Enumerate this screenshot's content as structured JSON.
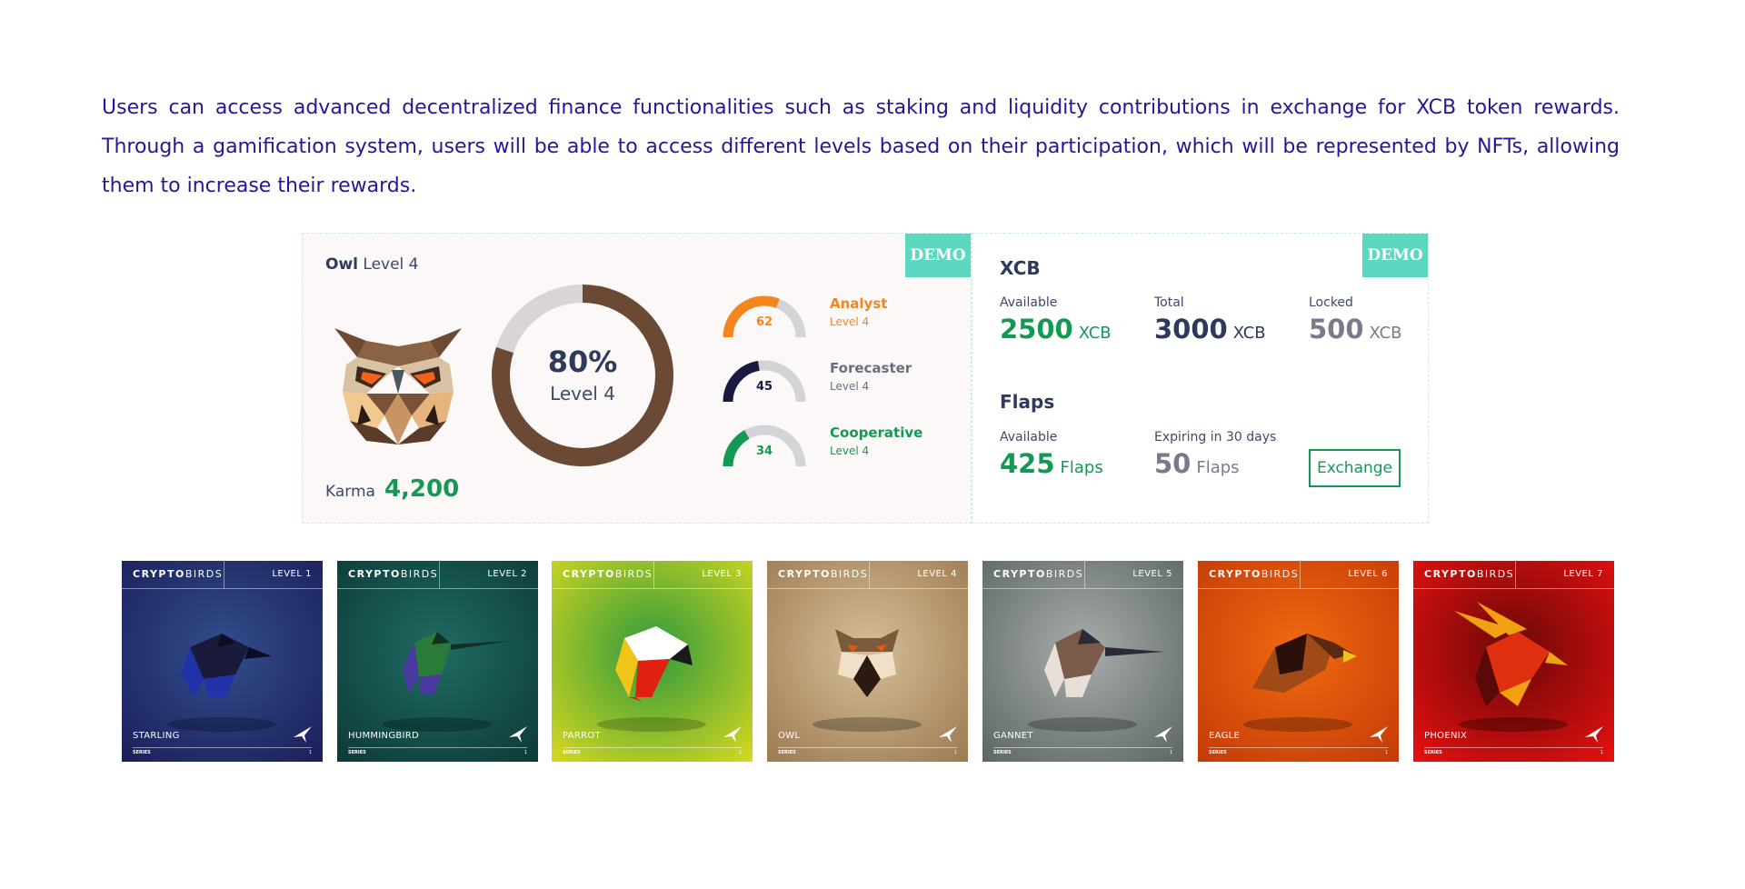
{
  "intro": {
    "text": "Users can access advanced decentralized finance functionalities such as staking and liquidity contributions in exchange for XCB token rewards. Through a gamification system, users will be able to access different levels based on their participation, which will be represented by NFTs, allowing them to increase their rewards."
  },
  "demo_label": "DEMO",
  "badge": {
    "name": "Owl",
    "level": "Level 4",
    "karma_label": "Karma",
    "karma_value": "4,200",
    "progress_percent_label": "80%",
    "progress_percent": 80,
    "progress_level": "Level 4",
    "progress_color": "#6b4a35",
    "track_color": "#d9d5d4"
  },
  "skills": [
    {
      "name": "Analyst",
      "level": "Level 4",
      "value": 62,
      "value_label": "62",
      "color": "#f4861f"
    },
    {
      "name": "Forecaster",
      "level": "Level 4",
      "value": 45,
      "value_label": "45",
      "color": "#1a1a40"
    },
    {
      "name": "Cooperative",
      "level": "Level 4",
      "value": 34,
      "value_label": "34",
      "color": "#129a55"
    }
  ],
  "xcb": {
    "title": "XCB",
    "available_label": "Available",
    "available": "2500",
    "available_unit": "XCB",
    "total_label": "Total",
    "total": "3000",
    "total_unit": "XCB",
    "locked_label": "Locked",
    "locked": "500",
    "locked_unit": "XCB"
  },
  "flaps": {
    "title": "Flaps",
    "available_label": "Available",
    "available": "425",
    "available_unit": "Flaps",
    "expiring_label": "Expiring in 30 days",
    "expiring": "50",
    "expiring_unit": "Flaps",
    "exchange_label": "Exchange"
  },
  "nft_cards": [
    {
      "brand_bold": "CRYPTO",
      "brand_rest": "BIRDS",
      "level": "LEVEL 1",
      "name": "STARLING",
      "series": "SERIES",
      "series_num": "1",
      "bg_top": "#324e8c",
      "bg_bottom": "#1b1f5a",
      "bird": [
        "#1a1a3a",
        "#2233aa",
        "#0c0c22"
      ]
    },
    {
      "brand_bold": "CRYPTO",
      "brand_rest": "BIRDS",
      "level": "LEVEL 2",
      "name": "HUMMINGBIRD",
      "series": "SERIES",
      "series_num": "1",
      "bg_top": "#1f6b62",
      "bg_bottom": "#0d3a38",
      "bird": [
        "#2a7a3a",
        "#4a3aa0",
        "#123024"
      ]
    },
    {
      "brand_bold": "CRYPTO",
      "brand_rest": "BIRDS",
      "level": "LEVEL 3",
      "name": "PARROT",
      "series": "SERIES",
      "series_num": "1",
      "bg_top": "#2f9a3c",
      "bg_bottom": "#d8d820",
      "bird": [
        "#ffffff",
        "#f2c418",
        "#e02010"
      ]
    },
    {
      "brand_bold": "CRYPTO",
      "brand_rest": "BIRDS",
      "level": "LEVEL 4",
      "name": "OWL",
      "series": "SERIES",
      "series_num": "1",
      "bg_top": "#d6bf98",
      "bg_bottom": "#9c7a52",
      "bird": [
        "#7a5a3a",
        "#f0e0c8",
        "#2a1a10"
      ]
    },
    {
      "brand_bold": "CRYPTO",
      "brand_rest": "BIRDS",
      "level": "LEVEL 5",
      "name": "GANNET",
      "series": "SERIES",
      "series_num": "1",
      "bg_top": "#a8adab",
      "bg_bottom": "#5c6664",
      "bird": [
        "#7a5a48",
        "#e8e0d8",
        "#2a2a38"
      ]
    },
    {
      "brand_bold": "CRYPTO",
      "brand_rest": "BIRDS",
      "level": "LEVEL 6",
      "name": "EAGLE",
      "series": "SERIES",
      "series_num": "1",
      "bg_top": "#f06a10",
      "bg_bottom": "#c43a08",
      "bird": [
        "#5a2a10",
        "#a04a18",
        "#2a1008"
      ]
    },
    {
      "brand_bold": "CRYPTO",
      "brand_rest": "BIRDS",
      "level": "LEVEL 7",
      "name": "PHOENIX",
      "series": "SERIES",
      "series_num": "1",
      "bg_top": "#6a0808",
      "bg_bottom": "#e81010",
      "bird": [
        "#f0a010",
        "#e03010",
        "#5a0808"
      ]
    }
  ]
}
